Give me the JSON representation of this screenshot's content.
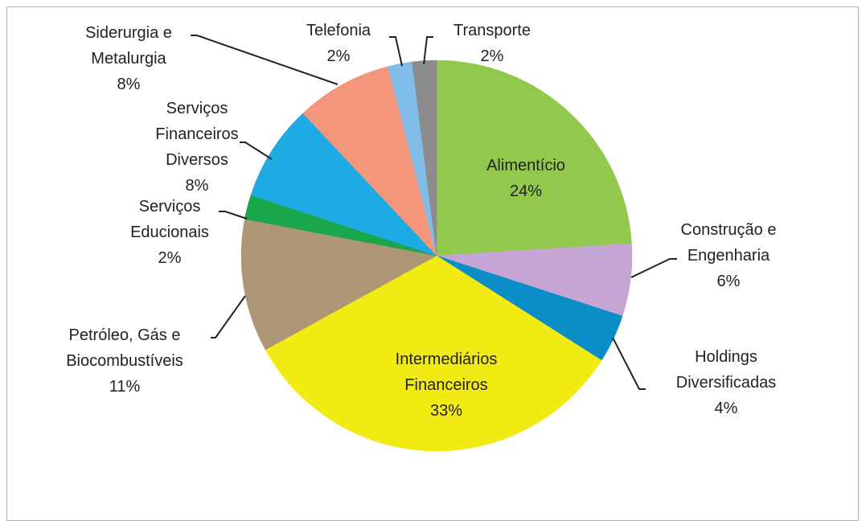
{
  "chart_data": {
    "type": "pie",
    "categories": [
      "Alimentício",
      "Construção e Engenharia",
      "Holdings Diversificadas",
      "Intermediários Financeiros",
      "Petróleo, Gás e Biocombustíveis",
      "Serviços Educionais",
      "Serviços Financeiros Diversos",
      "Siderurgia e Metalurgia",
      "Telefonia",
      "Transporte"
    ],
    "values": [
      24,
      6,
      4,
      33,
      11,
      2,
      8,
      8,
      2,
      2
    ],
    "value_labels": [
      "24%",
      "6%",
      "4%",
      "33%",
      "11%",
      "2%",
      "8%",
      "8%",
      "2%",
      "2%"
    ],
    "colors": [
      "#92c84b",
      "#c4a5d3",
      "#0b8ec8",
      "#f2ea13",
      "#ad9675",
      "#1aa64a",
      "#1eaae2",
      "#f4967c",
      "#7fbde8",
      "#8c8c8c"
    ]
  }
}
